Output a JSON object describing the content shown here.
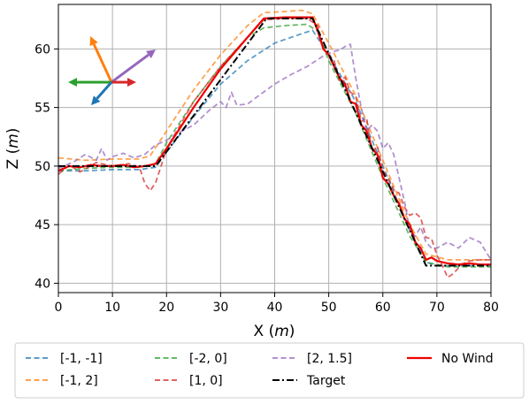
{
  "chart_data": {
    "type": "line",
    "title": "",
    "xlabel": "X (",
    "xlabel_unit": "m",
    "xlabel_close": ")",
    "ylabel": "Z (",
    "ylabel_unit": "m",
    "ylabel_close": ")",
    "xlim": [
      0,
      80
    ],
    "ylim": [
      39.2,
      63.8
    ],
    "xticks": [
      "0",
      "10",
      "20",
      "30",
      "40",
      "50",
      "60",
      "70",
      "80"
    ],
    "yticks": [
      "40",
      "45",
      "50",
      "55",
      "60"
    ],
    "grid": true,
    "legend_placement": "bottom-outside",
    "series": [
      {
        "name": "[-1, -1]",
        "color": "#1f77b4",
        "style": "dashed",
        "points": [
          [
            0,
            49.6
          ],
          [
            5,
            49.6
          ],
          [
            10,
            49.7
          ],
          [
            15,
            49.7
          ],
          [
            18,
            49.9
          ],
          [
            20,
            51.2
          ],
          [
            25,
            54.2
          ],
          [
            30,
            57.0
          ],
          [
            35,
            59.0
          ],
          [
            40,
            60.5
          ],
          [
            45,
            61.3
          ],
          [
            47,
            61.6
          ],
          [
            50,
            59.5
          ],
          [
            55,
            55.5
          ],
          [
            60,
            50.0
          ],
          [
            65,
            44.5
          ],
          [
            68,
            41.8
          ],
          [
            70,
            41.5
          ],
          [
            80,
            41.5
          ]
        ]
      },
      {
        "name": "[-1, 2]",
        "color": "#ff7f0e",
        "style": "dashed",
        "points": [
          [
            0,
            50.7
          ],
          [
            5,
            50.5
          ],
          [
            10,
            50.6
          ],
          [
            15,
            50.6
          ],
          [
            17,
            50.9
          ],
          [
            20,
            53.0
          ],
          [
            25,
            56.5
          ],
          [
            30,
            59.5
          ],
          [
            35,
            62.0
          ],
          [
            38,
            63.1
          ],
          [
            42,
            63.2
          ],
          [
            45,
            63.3
          ],
          [
            47,
            63.0
          ],
          [
            50,
            60.5
          ],
          [
            55,
            56.0
          ],
          [
            60,
            50.5
          ],
          [
            65,
            45.0
          ],
          [
            68,
            42.5
          ],
          [
            72,
            42.0
          ],
          [
            80,
            42.0
          ]
        ]
      },
      {
        "name": "[-2, 0]",
        "color": "#2ca02c",
        "style": "dashed",
        "points": [
          [
            0,
            49.6
          ],
          [
            5,
            49.8
          ],
          [
            10,
            49.9
          ],
          [
            15,
            49.9
          ],
          [
            18,
            50.2
          ],
          [
            20,
            52.0
          ],
          [
            25,
            55.5
          ],
          [
            30,
            58.5
          ],
          [
            35,
            61.0
          ],
          [
            38,
            61.8
          ],
          [
            42,
            62.0
          ],
          [
            46,
            62.1
          ],
          [
            48,
            61.5
          ],
          [
            50,
            59.0
          ],
          [
            55,
            54.5
          ],
          [
            60,
            49.0
          ],
          [
            65,
            44.0
          ],
          [
            68,
            41.8
          ],
          [
            72,
            41.4
          ],
          [
            80,
            41.4
          ]
        ]
      },
      {
        "name": "[1, 0]",
        "color": "#d62728",
        "style": "dashed",
        "points": [
          [
            0,
            49.3
          ],
          [
            2,
            50.1
          ],
          [
            4,
            49.5
          ],
          [
            7,
            50.3
          ],
          [
            10,
            50.0
          ],
          [
            13,
            50.2
          ],
          [
            15,
            49.9
          ],
          [
            16,
            48.5
          ],
          [
            17,
            47.9
          ],
          [
            18,
            48.6
          ],
          [
            19,
            50.0
          ],
          [
            20,
            51.5
          ],
          [
            25,
            55.5
          ],
          [
            30,
            58.5
          ],
          [
            35,
            61.0
          ],
          [
            38,
            62.5
          ],
          [
            42,
            62.6
          ],
          [
            46,
            62.6
          ],
          [
            48,
            62.0
          ],
          [
            49,
            60.0
          ],
          [
            50,
            59.5
          ],
          [
            51,
            59.0
          ],
          [
            52,
            57.3
          ],
          [
            53,
            57.6
          ],
          [
            54,
            56.3
          ],
          [
            55,
            56.0
          ],
          [
            56,
            53.8
          ],
          [
            57,
            54.1
          ],
          [
            58,
            51.2
          ],
          [
            59,
            51.7
          ],
          [
            60,
            49.6
          ],
          [
            61,
            49.0
          ],
          [
            62,
            48.0
          ],
          [
            63,
            47.7
          ],
          [
            64,
            46.5
          ],
          [
            65,
            45.8
          ],
          [
            66,
            46.0
          ],
          [
            67,
            45.6
          ],
          [
            68,
            43.9
          ],
          [
            69,
            43.8
          ],
          [
            70,
            42.4
          ],
          [
            71,
            41.5
          ],
          [
            72,
            40.5
          ],
          [
            73,
            40.8
          ],
          [
            74,
            41.3
          ],
          [
            75,
            41.7
          ],
          [
            76,
            41.9
          ],
          [
            78,
            42.0
          ],
          [
            80,
            42.0
          ]
        ]
      },
      {
        "name": "[2, 1.5]",
        "color": "#9467bd",
        "style": "dashed",
        "points": [
          [
            0,
            49.8
          ],
          [
            3,
            50.4
          ],
          [
            5,
            51.0
          ],
          [
            7,
            50.5
          ],
          [
            8,
            51.5
          ],
          [
            9,
            50.5
          ],
          [
            10,
            50.8
          ],
          [
            12,
            51.1
          ],
          [
            14,
            50.7
          ],
          [
            16,
            51.0
          ],
          [
            18,
            51.8
          ],
          [
            20,
            52.2
          ],
          [
            22,
            52.8
          ],
          [
            25,
            53.5
          ],
          [
            28,
            54.8
          ],
          [
            30,
            55.5
          ],
          [
            31,
            55.0
          ],
          [
            32,
            56.3
          ],
          [
            33,
            55.2
          ],
          [
            35,
            55.3
          ],
          [
            37,
            56.0
          ],
          [
            40,
            57.0
          ],
          [
            43,
            57.8
          ],
          [
            46,
            58.5
          ],
          [
            49,
            59.4
          ],
          [
            51,
            59.8
          ],
          [
            52,
            59.9
          ],
          [
            53,
            60.2
          ],
          [
            54,
            60.4
          ],
          [
            55,
            57.5
          ],
          [
            56,
            55.0
          ],
          [
            57,
            53.0
          ],
          [
            58,
            53.5
          ],
          [
            59,
            53.0
          ],
          [
            60,
            51.5
          ],
          [
            61,
            52.0
          ],
          [
            62,
            51.0
          ],
          [
            63,
            49.0
          ],
          [
            64,
            47.0
          ],
          [
            65,
            44.5
          ],
          [
            66,
            44.0
          ],
          [
            67,
            44.8
          ],
          [
            68,
            43.5
          ],
          [
            69,
            43.0
          ],
          [
            70,
            43.0
          ],
          [
            72,
            43.5
          ],
          [
            74,
            43.0
          ],
          [
            76,
            43.9
          ],
          [
            78,
            43.5
          ],
          [
            80,
            42.0
          ]
        ]
      },
      {
        "name": "No Wind",
        "color": "#ee0000",
        "style": "solid",
        "points": [
          [
            0,
            49.6
          ],
          [
            2,
            50.0
          ],
          [
            4,
            49.9
          ],
          [
            6,
            50.1
          ],
          [
            8,
            50.0
          ],
          [
            10,
            50.0
          ],
          [
            12,
            50.1
          ],
          [
            14,
            49.9
          ],
          [
            16,
            50.0
          ],
          [
            18,
            50.2
          ],
          [
            20,
            51.5
          ],
          [
            25,
            55.0
          ],
          [
            30,
            58.3
          ],
          [
            35,
            61.0
          ],
          [
            38,
            62.6
          ],
          [
            42,
            62.7
          ],
          [
            47,
            62.7
          ],
          [
            48,
            61.5
          ],
          [
            49,
            60.0
          ],
          [
            50,
            59.5
          ],
          [
            51,
            58.5
          ],
          [
            52,
            57.5
          ],
          [
            53,
            57.0
          ],
          [
            54,
            55.5
          ],
          [
            55,
            55.3
          ],
          [
            56,
            53.5
          ],
          [
            57,
            53.0
          ],
          [
            58,
            51.5
          ],
          [
            59,
            51.0
          ],
          [
            60,
            49.0
          ],
          [
            61,
            48.5
          ],
          [
            62,
            47.5
          ],
          [
            63,
            46.8
          ],
          [
            64,
            45.5
          ],
          [
            65,
            45.0
          ],
          [
            66,
            43.5
          ],
          [
            67,
            43.0
          ],
          [
            68,
            42.0
          ],
          [
            69,
            42.2
          ],
          [
            70,
            41.9
          ],
          [
            72,
            41.7
          ],
          [
            74,
            41.6
          ],
          [
            76,
            41.7
          ],
          [
            78,
            41.6
          ],
          [
            80,
            41.6
          ]
        ]
      },
      {
        "name": "Target",
        "color": "#000000",
        "style": "dashdot",
        "points": [
          [
            0,
            50.0
          ],
          [
            18,
            50.0
          ],
          [
            38.5,
            62.6
          ],
          [
            47,
            62.6
          ],
          [
            68,
            41.5
          ],
          [
            80,
            41.5
          ]
        ]
      }
    ],
    "legend_order": [
      0,
      1,
      2,
      5,
      6,
      3,
      4
    ],
    "inset_arrows": [
      {
        "color": "#ff7f0e",
        "name": "orange-arrow"
      },
      {
        "color": "#9467bd",
        "name": "purple-arrow"
      },
      {
        "color": "#2ca02c",
        "name": "green-arrow"
      },
      {
        "color": "#d62728",
        "name": "red-arrow"
      },
      {
        "color": "#1f77b4",
        "name": "blue-arrow"
      }
    ]
  }
}
